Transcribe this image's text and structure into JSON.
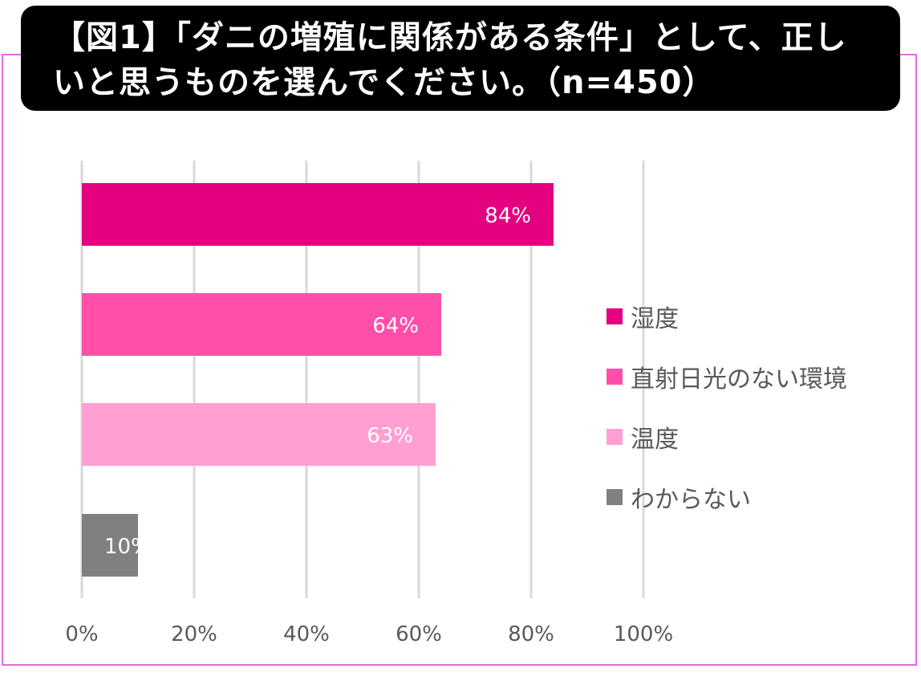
{
  "title": "【図1】「ダニの増殖に関係がある条件」として、正しいと思うものを選んでください。（n=450）",
  "chart_data": {
    "type": "bar",
    "orientation": "horizontal",
    "categories": [
      "湿度",
      "直射日光のない環境",
      "温度",
      "わからない"
    ],
    "values": [
      84,
      64,
      63,
      10
    ],
    "data_labels": [
      "84%",
      "64%",
      "63%",
      "10%"
    ],
    "colors": [
      "#e4007f",
      "#ff4fa8",
      "#ff9fd2",
      "#808080"
    ],
    "xlim": [
      0,
      100
    ],
    "xticks": [
      0,
      20,
      40,
      60,
      80,
      100
    ],
    "xtick_labels": [
      "0%",
      "20%",
      "40%",
      "60%",
      "80%",
      "100%"
    ],
    "grid": true,
    "legend_position": "right",
    "xlabel": "",
    "ylabel": ""
  },
  "legend": [
    {
      "label": "湿度",
      "color": "#e4007f"
    },
    {
      "label": "直射日光のない環境",
      "color": "#ff4fa8"
    },
    {
      "label": "温度",
      "color": "#ff9fd2"
    },
    {
      "label": "わからない",
      "color": "#808080"
    }
  ]
}
